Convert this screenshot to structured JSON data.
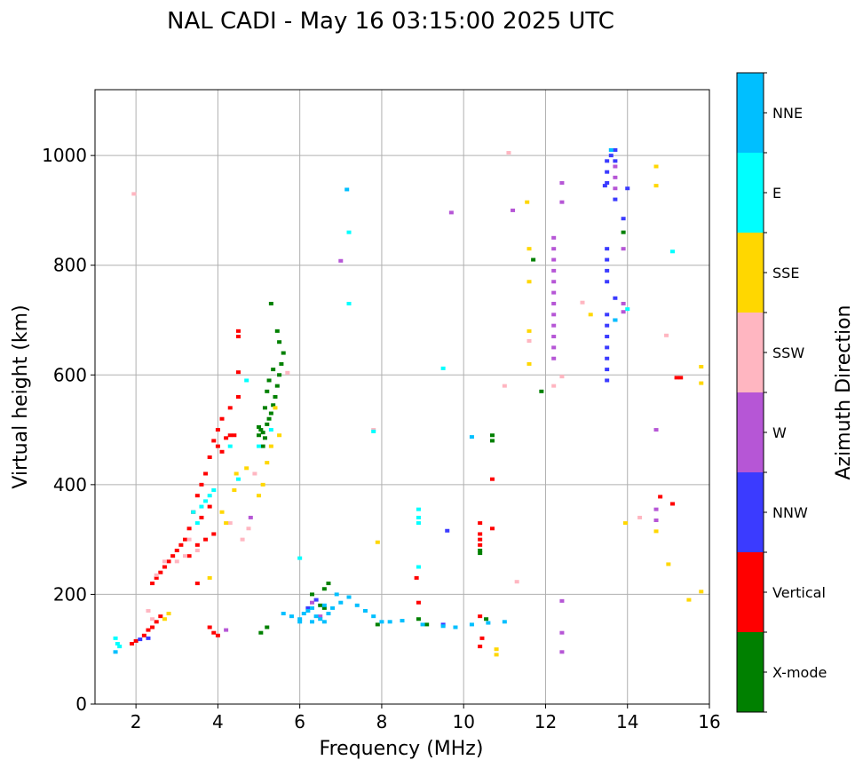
{
  "chart_data": {
    "type": "scatter",
    "title": "NAL CADI - May 16 03:15:00 2025 UTC",
    "xlabel": "Frequency (MHz)",
    "ylabel": "Virtual height (km)",
    "xlim": [
      1,
      16
    ],
    "ylim": [
      0,
      1120
    ],
    "xticks": [
      2,
      4,
      6,
      8,
      10,
      12,
      14,
      16
    ],
    "yticks": [
      0,
      200,
      400,
      600,
      800,
      1000
    ],
    "grid": true,
    "colorbar": {
      "label": "Azimuth Direction",
      "categories": [
        {
          "name": "X-mode",
          "color": "#008000"
        },
        {
          "name": "Vertical",
          "color": "#ff0000"
        },
        {
          "name": "NNW",
          "color": "#3b3bff"
        },
        {
          "name": "W",
          "color": "#b656d6"
        },
        {
          "name": "SSW",
          "color": "#ffb6c1"
        },
        {
          "name": "SSE",
          "color": "#ffd700"
        },
        {
          "name": "E",
          "color": "#00ffff"
        },
        {
          "name": "NNE",
          "color": "#00bfff"
        }
      ]
    },
    "series": [
      {
        "name": "X-mode",
        "points": [
          [
            5.0,
            490
          ],
          [
            5.05,
            500
          ],
          [
            5.1,
            495
          ],
          [
            5.15,
            485
          ],
          [
            5.2,
            510
          ],
          [
            5.25,
            520
          ],
          [
            5.3,
            530
          ],
          [
            5.35,
            545
          ],
          [
            5.4,
            560
          ],
          [
            5.45,
            580
          ],
          [
            5.5,
            600
          ],
          [
            5.55,
            620
          ],
          [
            5.6,
            640
          ],
          [
            5.5,
            660
          ],
          [
            5.45,
            680
          ],
          [
            5.3,
            730
          ],
          [
            5.2,
            570
          ],
          [
            5.25,
            590
          ],
          [
            5.35,
            610
          ],
          [
            5.1,
            470
          ],
          [
            6.3,
            200
          ],
          [
            6.6,
            210
          ],
          [
            6.7,
            220
          ],
          [
            6.5,
            180
          ],
          [
            6.6,
            175
          ],
          [
            10.7,
            490
          ],
          [
            10.7,
            480
          ],
          [
            10.4,
            280
          ],
          [
            10.4,
            275
          ],
          [
            10.55,
            155
          ],
          [
            8.9,
            155
          ],
          [
            9.1,
            145
          ],
          [
            5.2,
            140
          ],
          [
            5.05,
            130
          ],
          [
            7.9,
            145
          ],
          [
            11.9,
            570
          ],
          [
            11.7,
            810
          ],
          [
            13.9,
            860
          ],
          [
            5.15,
            540
          ],
          [
            5.0,
            505
          ]
        ]
      },
      {
        "name": "Vertical",
        "points": [
          [
            3.9,
            480
          ],
          [
            4.0,
            470
          ],
          [
            4.1,
            460
          ],
          [
            4.2,
            485
          ],
          [
            4.3,
            490
          ],
          [
            3.8,
            450
          ],
          [
            3.7,
            420
          ],
          [
            3.6,
            400
          ],
          [
            3.5,
            380
          ],
          [
            3.4,
            350
          ],
          [
            3.3,
            320
          ],
          [
            3.2,
            300
          ],
          [
            3.1,
            290
          ],
          [
            3.0,
            280
          ],
          [
            2.9,
            270
          ],
          [
            2.8,
            260
          ],
          [
            2.7,
            250
          ],
          [
            2.6,
            240
          ],
          [
            2.5,
            230
          ],
          [
            2.4,
            220
          ],
          [
            3.6,
            340
          ],
          [
            3.8,
            360
          ],
          [
            3.9,
            310
          ],
          [
            3.7,
            300
          ],
          [
            3.5,
            290
          ],
          [
            3.3,
            270
          ],
          [
            4.0,
            500
          ],
          [
            4.1,
            520
          ],
          [
            4.3,
            540
          ],
          [
            4.5,
            560
          ],
          [
            4.5,
            680
          ],
          [
            4.5,
            670
          ],
          [
            4.5,
            605
          ],
          [
            2.6,
            160
          ],
          [
            2.5,
            150
          ],
          [
            2.4,
            140
          ],
          [
            2.3,
            135
          ],
          [
            2.2,
            125
          ],
          [
            2.0,
            115
          ],
          [
            1.9,
            110
          ],
          [
            3.8,
            140
          ],
          [
            3.9,
            130
          ],
          [
            4.0,
            125
          ],
          [
            3.5,
            220
          ],
          [
            10.4,
            330
          ],
          [
            10.4,
            310
          ],
          [
            10.4,
            300
          ],
          [
            10.4,
            290
          ],
          [
            10.7,
            320
          ],
          [
            10.7,
            410
          ],
          [
            8.85,
            230
          ],
          [
            8.9,
            185
          ],
          [
            10.4,
            160
          ],
          [
            10.45,
            120
          ],
          [
            10.4,
            105
          ],
          [
            15.3,
            595
          ],
          [
            15.2,
            595
          ],
          [
            14.8,
            378
          ],
          [
            15.1,
            365
          ],
          [
            4.4,
            490
          ]
        ]
      },
      {
        "name": "NNW",
        "points": [
          [
            13.5,
            990
          ],
          [
            13.5,
            970
          ],
          [
            13.5,
            950
          ],
          [
            13.45,
            945
          ],
          [
            13.6,
            1000
          ],
          [
            13.5,
            830
          ],
          [
            13.5,
            810
          ],
          [
            13.5,
            790
          ],
          [
            13.5,
            770
          ],
          [
            13.5,
            710
          ],
          [
            13.5,
            690
          ],
          [
            13.5,
            670
          ],
          [
            13.5,
            650
          ],
          [
            13.5,
            630
          ],
          [
            13.5,
            610
          ],
          [
            13.5,
            590
          ],
          [
            13.7,
            1010
          ],
          [
            13.7,
            990
          ],
          [
            13.7,
            920
          ],
          [
            13.7,
            740
          ],
          [
            13.7,
            700
          ],
          [
            13.9,
            885
          ],
          [
            14.0,
            940
          ],
          [
            9.6,
            316
          ],
          [
            2.3,
            120
          ],
          [
            2.1,
            118
          ],
          [
            6.4,
            190
          ],
          [
            6.2,
            175
          ],
          [
            9.5,
            145
          ]
        ]
      },
      {
        "name": "W",
        "points": [
          [
            12.2,
            850
          ],
          [
            12.2,
            830
          ],
          [
            12.2,
            810
          ],
          [
            12.2,
            790
          ],
          [
            12.2,
            770
          ],
          [
            12.2,
            750
          ],
          [
            12.2,
            730
          ],
          [
            12.2,
            710
          ],
          [
            12.2,
            690
          ],
          [
            12.2,
            670
          ],
          [
            12.2,
            650
          ],
          [
            12.2,
            630
          ],
          [
            12.4,
            950
          ],
          [
            12.4,
            915
          ],
          [
            13.7,
            980
          ],
          [
            13.7,
            960
          ],
          [
            13.7,
            940
          ],
          [
            13.9,
            830
          ],
          [
            13.9,
            730
          ],
          [
            13.9,
            715
          ],
          [
            14.7,
            500
          ],
          [
            14.7,
            355
          ],
          [
            14.7,
            335
          ],
          [
            12.4,
            188
          ],
          [
            12.4,
            130
          ],
          [
            12.4,
            95
          ],
          [
            6.3,
            185
          ],
          [
            6.5,
            160
          ],
          [
            4.2,
            135
          ],
          [
            4.8,
            340
          ],
          [
            7.0,
            808
          ],
          [
            9.7,
            896
          ],
          [
            11.2,
            900
          ]
        ]
      },
      {
        "name": "SSW",
        "points": [
          [
            1.95,
            930
          ],
          [
            2.7,
            260
          ],
          [
            2.5,
            235
          ],
          [
            2.3,
            170
          ],
          [
            2.4,
            155
          ],
          [
            3.0,
            260
          ],
          [
            3.2,
            270
          ],
          [
            3.5,
            280
          ],
          [
            3.3,
            300
          ],
          [
            4.6,
            300
          ],
          [
            4.9,
            420
          ],
          [
            4.75,
            320
          ],
          [
            4.3,
            330
          ],
          [
            11.1,
            1005
          ],
          [
            12.2,
            580
          ],
          [
            12.4,
            597
          ],
          [
            12.9,
            732
          ],
          [
            14.95,
            672
          ],
          [
            11.3,
            223
          ],
          [
            7.8,
            500
          ],
          [
            14.3,
            340
          ],
          [
            5.7,
            604
          ],
          [
            11.6,
            662
          ],
          [
            11.0,
            580
          ]
        ]
      },
      {
        "name": "SSE",
        "points": [
          [
            2.8,
            165
          ],
          [
            2.7,
            155
          ],
          [
            3.8,
            230
          ],
          [
            4.1,
            350
          ],
          [
            4.2,
            330
          ],
          [
            4.4,
            390
          ],
          [
            4.45,
            420
          ],
          [
            4.7,
            430
          ],
          [
            5.0,
            380
          ],
          [
            5.1,
            400
          ],
          [
            5.2,
            440
          ],
          [
            5.5,
            490
          ],
          [
            5.4,
            540
          ],
          [
            5.3,
            470
          ],
          [
            11.55,
            915
          ],
          [
            11.6,
            830
          ],
          [
            11.6,
            770
          ],
          [
            11.6,
            680
          ],
          [
            11.6,
            620
          ],
          [
            13.1,
            710
          ],
          [
            14.7,
            980
          ],
          [
            14.7,
            945
          ],
          [
            14.7,
            315
          ],
          [
            15.0,
            255
          ],
          [
            15.5,
            190
          ],
          [
            15.8,
            205
          ],
          [
            15.8,
            615
          ],
          [
            15.8,
            585
          ],
          [
            7.9,
            295
          ],
          [
            10.8,
            100
          ],
          [
            10.8,
            90
          ],
          [
            13.95,
            330
          ]
        ]
      },
      {
        "name": "E",
        "points": [
          [
            1.5,
            120
          ],
          [
            1.55,
            110
          ],
          [
            1.6,
            105
          ],
          [
            3.4,
            350
          ],
          [
            3.5,
            330
          ],
          [
            3.6,
            360
          ],
          [
            3.7,
            370
          ],
          [
            3.8,
            380
          ],
          [
            3.9,
            390
          ],
          [
            4.3,
            470
          ],
          [
            4.5,
            410
          ],
          [
            4.7,
            590
          ],
          [
            5.0,
            470
          ],
          [
            5.3,
            500
          ],
          [
            8.9,
            355
          ],
          [
            8.9,
            340
          ],
          [
            8.9,
            330
          ],
          [
            8.9,
            250
          ],
          [
            9.5,
            612
          ],
          [
            7.2,
            860
          ],
          [
            7.2,
            730
          ],
          [
            15.1,
            825
          ],
          [
            7.8,
            497
          ],
          [
            6.0,
            266
          ],
          [
            14.0,
            720
          ]
        ]
      },
      {
        "name": "NNE",
        "points": [
          [
            5.6,
            165
          ],
          [
            5.8,
            160
          ],
          [
            6.0,
            155
          ],
          [
            6.1,
            165
          ],
          [
            6.2,
            170
          ],
          [
            6.3,
            175
          ],
          [
            6.4,
            160
          ],
          [
            6.5,
            155
          ],
          [
            6.6,
            150
          ],
          [
            6.7,
            165
          ],
          [
            6.8,
            175
          ],
          [
            7.0,
            185
          ],
          [
            7.2,
            195
          ],
          [
            7.4,
            180
          ],
          [
            7.6,
            170
          ],
          [
            7.8,
            160
          ],
          [
            8.0,
            150
          ],
          [
            8.2,
            150
          ],
          [
            8.5,
            152
          ],
          [
            9.0,
            145
          ],
          [
            9.5,
            142
          ],
          [
            9.8,
            140
          ],
          [
            10.2,
            145
          ],
          [
            10.6,
            148
          ],
          [
            11.0,
            150
          ],
          [
            6.0,
            150
          ],
          [
            6.3,
            150
          ],
          [
            6.6,
            180
          ],
          [
            6.9,
            200
          ],
          [
            1.5,
            95
          ],
          [
            10.2,
            487
          ],
          [
            7.15,
            938
          ],
          [
            13.7,
            700
          ],
          [
            13.6,
            1010
          ]
        ]
      }
    ]
  }
}
